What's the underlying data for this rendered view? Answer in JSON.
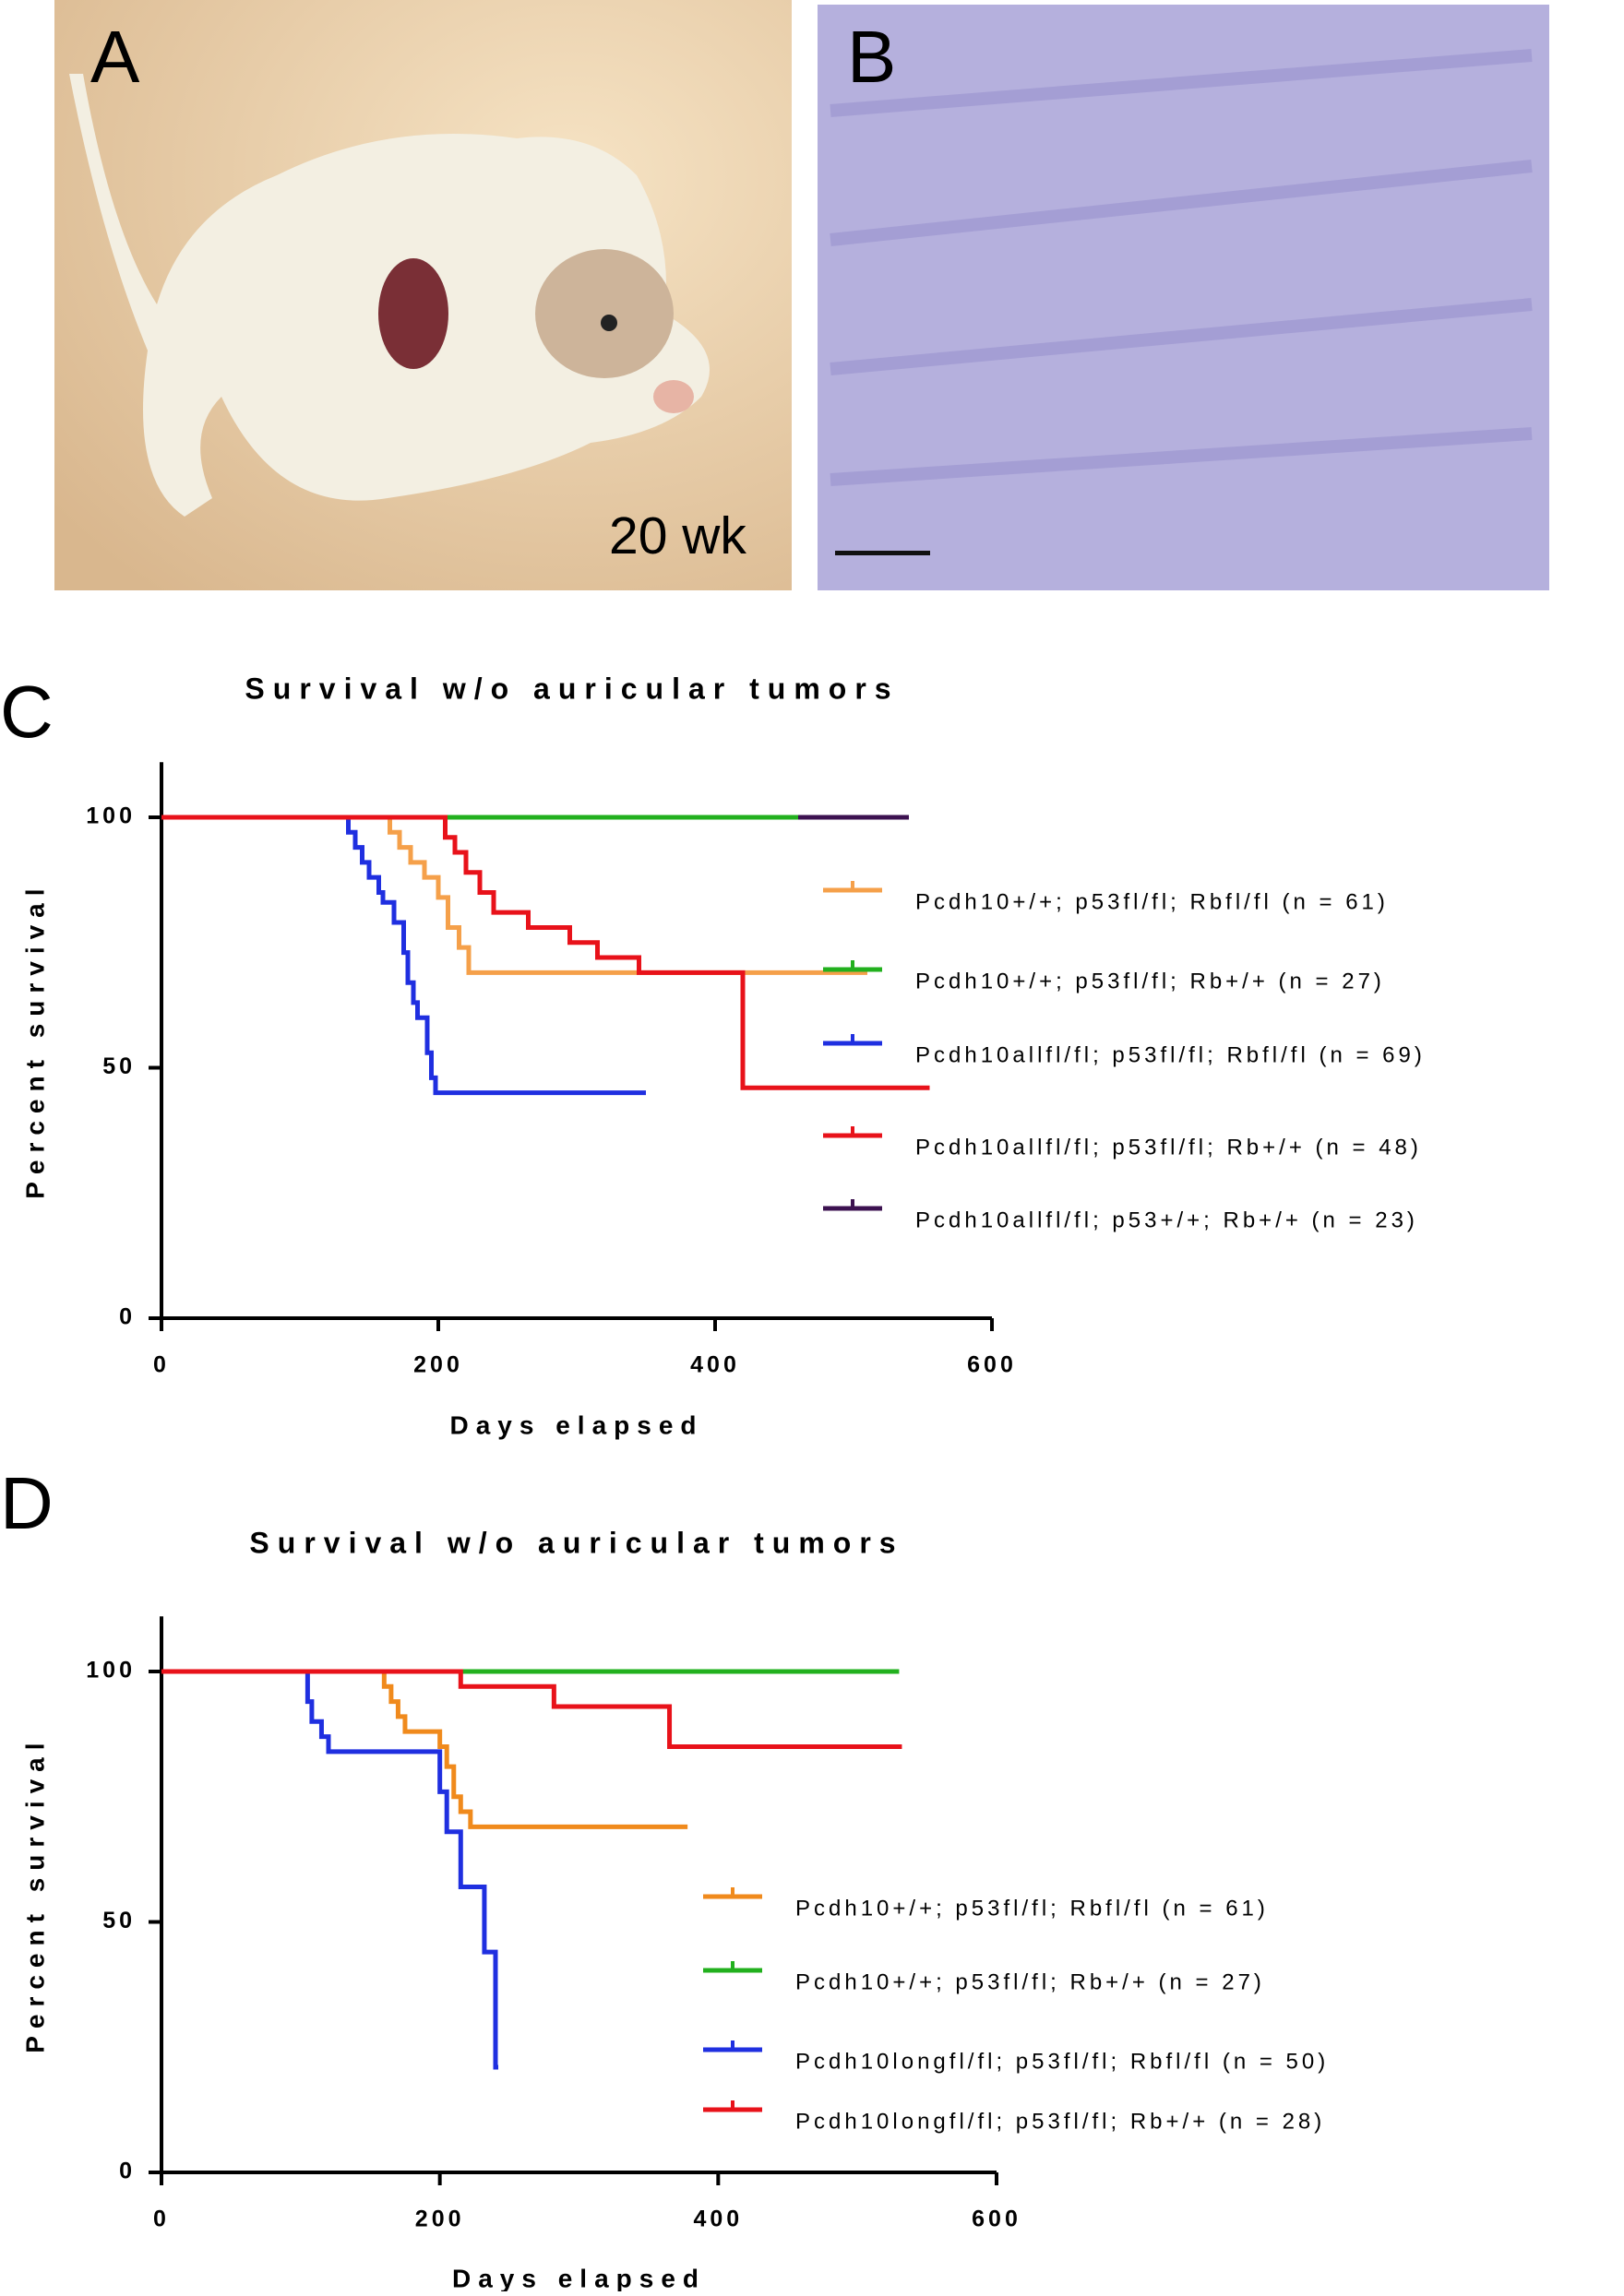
{
  "panels": {
    "A": {
      "label": "A",
      "annotation": "20 wk"
    },
    "B": {
      "label": "B"
    }
  },
  "chart_data": [
    {
      "type": "step",
      "panel_label": "C",
      "title": "Survival w/o auricular tumors",
      "x_label": "Days elapsed",
      "y_label": "Percent survival",
      "xlim": [
        0,
        600
      ],
      "ylim": [
        0,
        111
      ],
      "xticks": [
        0,
        200,
        400,
        600
      ],
      "yticks": [
        0,
        50,
        100
      ],
      "series": [
        {
          "name": "Pcdh10+/+; p53fl/fl; Rbfl/fl (n = 61)",
          "color": "#f5a04a",
          "x": [
            0,
            165,
            172,
            180,
            190,
            200,
            207,
            215,
            222,
            510
          ],
          "values": [
            100,
            97,
            94,
            91,
            88,
            84,
            78,
            74,
            69,
            69
          ]
        },
        {
          "name": "Pcdh10+/+; p53fl/fl; Rb+/+ (n = 27)",
          "color": "#22b01e",
          "x": [
            0,
            530
          ],
          "values": [
            100,
            100
          ]
        },
        {
          "name": "Pcdh10allfl/fl; p53fl/fl; Rbfl/fl (n = 69)",
          "color": "#1f2fe0",
          "x": [
            0,
            135,
            140,
            145,
            150,
            157,
            160,
            168,
            175,
            178,
            182,
            185,
            192,
            195,
            198,
            200,
            350
          ],
          "values": [
            100,
            97,
            94,
            91,
            88,
            85,
            83,
            79,
            73,
            67,
            63,
            60,
            53,
            48,
            45,
            45,
            45
          ]
        },
        {
          "name": "Pcdh10allfl/fl; p53fl/fl; Rb+/+ (n = 48)",
          "color": "#e8121a",
          "x": [
            0,
            205,
            212,
            220,
            230,
            240,
            265,
            295,
            315,
            345,
            365,
            420,
            555
          ],
          "values": [
            100,
            96,
            93,
            89,
            85,
            81,
            78,
            75,
            72,
            69,
            69,
            46,
            46
          ]
        },
        {
          "name": "Pcdh10allfl/fl; p53+/+; Rb+/+ (n = 23)",
          "color": "#3c1250",
          "x": [
            460,
            540
          ],
          "values": [
            100,
            100
          ]
        }
      ]
    },
    {
      "type": "step",
      "panel_label": "D",
      "title": "Survival w/o auricular tumors",
      "x_label": "Days elapsed",
      "y_label": "Percent survival",
      "xlim": [
        0,
        600
      ],
      "ylim": [
        0,
        111
      ],
      "xticks": [
        0,
        200,
        400,
        600
      ],
      "yticks": [
        0,
        50,
        100
      ],
      "series": [
        {
          "name": "Pcdh10+/+; p53fl/fl; Rbfl/fl (n = 61)",
          "color": "#f08a1c",
          "x": [
            0,
            160,
            165,
            170,
            175,
            182,
            200,
            205,
            210,
            215,
            222,
            378
          ],
          "values": [
            100,
            97,
            94,
            91,
            88,
            88,
            85,
            81,
            75,
            72,
            69,
            69
          ]
        },
        {
          "name": "Pcdh10+/+; p53fl/fl; Rb+/+ (n = 27)",
          "color": "#22b01e",
          "x": [
            0,
            530
          ],
          "values": [
            100,
            100
          ]
        },
        {
          "name": "Pcdh10longfl/fl; p53fl/fl; Rbfl/fl (n = 50)",
          "color": "#1f2fe0",
          "x": [
            0,
            105,
            108,
            115,
            120,
            128,
            200,
            205,
            215,
            232,
            240,
            242
          ],
          "values": [
            100,
            94,
            90,
            87,
            84,
            84,
            76,
            68,
            57,
            44,
            21,
            21
          ]
        },
        {
          "name": "Pcdh10longfl/fl; p53fl/fl; Rb+/+ (n = 28)",
          "color": "#e8121a",
          "x": [
            0,
            215,
            282,
            365,
            532
          ],
          "values": [
            100,
            97,
            93,
            85,
            85
          ]
        }
      ]
    }
  ]
}
